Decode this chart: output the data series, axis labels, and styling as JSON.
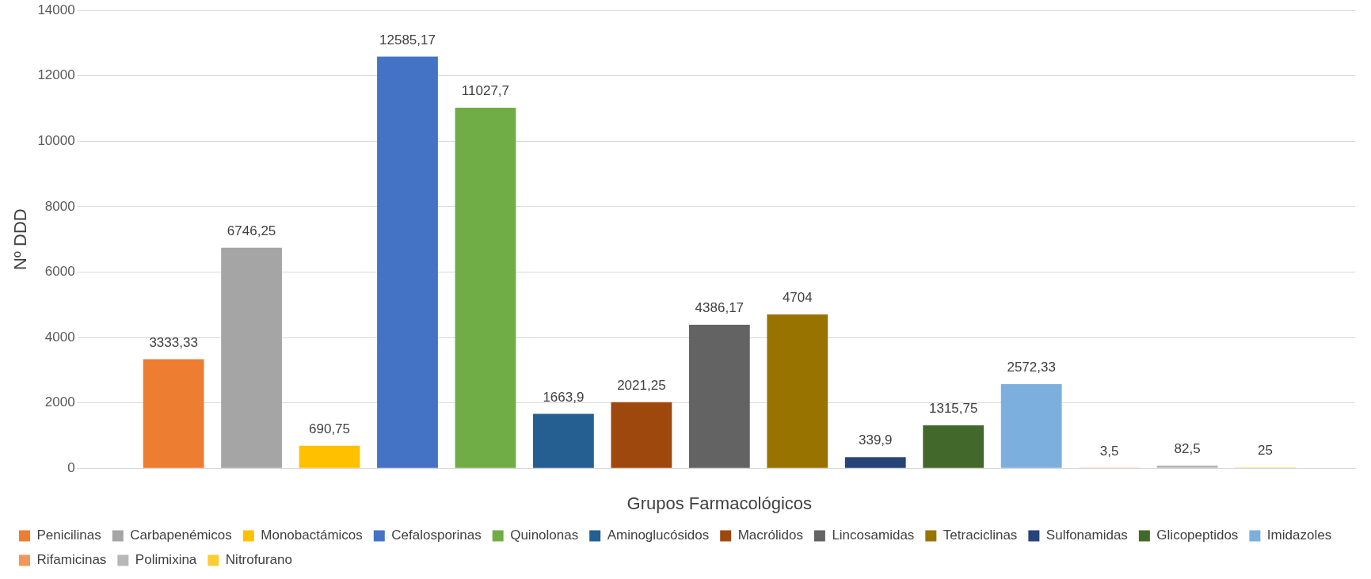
{
  "chart_data": {
    "type": "bar",
    "xlabel": "Grupos Farmacológicos",
    "ylabel": "Nº DDD",
    "categories": [
      null
    ],
    "series": [
      {
        "name": "Penicilinas",
        "color": "#ed7d31",
        "values": [
          3333.33
        ],
        "value_labels": [
          "3333,33"
        ]
      },
      {
        "name": "Carbapenémicos",
        "color": "#a5a5a5",
        "values": [
          6746.25
        ],
        "value_labels": [
          "6746,25"
        ]
      },
      {
        "name": "Monobactámicos",
        "color": "#ffc000",
        "values": [
          690.75
        ],
        "value_labels": [
          "690,75"
        ]
      },
      {
        "name": "Cefalosporinas",
        "color": "#4472c4",
        "values": [
          12585.17
        ],
        "value_labels": [
          "12585,17"
        ]
      },
      {
        "name": "Quinolonas",
        "color": "#70ad47",
        "values": [
          11027.7
        ],
        "value_labels": [
          "11027,7"
        ]
      },
      {
        "name": "Aminoglucósidos",
        "color": "#255e91",
        "values": [
          1663.9
        ],
        "value_labels": [
          "1663,9"
        ]
      },
      {
        "name": "Macrólidos",
        "color": "#9e480e",
        "values": [
          2021.25
        ],
        "value_labels": [
          "2021,25"
        ]
      },
      {
        "name": "Lincosamidas",
        "color": "#636363",
        "values": [
          4386.17
        ],
        "value_labels": [
          "4386,17"
        ]
      },
      {
        "name": "Tetraciclinas",
        "color": "#997300",
        "values": [
          4704
        ],
        "value_labels": [
          "4704"
        ]
      },
      {
        "name": "Sulfonamidas",
        "color": "#264478",
        "values": [
          339.9
        ],
        "value_labels": [
          "339,9"
        ]
      },
      {
        "name": "Glicopeptidos",
        "color": "#43682b",
        "values": [
          1315.75
        ],
        "value_labels": [
          "1315,75"
        ]
      },
      {
        "name": "Imidazoles",
        "color": "#7cafdd",
        "values": [
          2572.33
        ],
        "value_labels": [
          "2572,33"
        ]
      },
      {
        "name": "Rifamicinas",
        "color": "#f1975a",
        "values": [
          3.5
        ],
        "value_labels": [
          "3,5"
        ]
      },
      {
        "name": "Polimixina",
        "color": "#b7b7b7",
        "values": [
          82.5
        ],
        "value_labels": [
          "82,5"
        ]
      },
      {
        "name": "Nitrofurano",
        "color": "#ffcd33",
        "values": [
          25
        ],
        "value_labels": [
          "25"
        ]
      }
    ],
    "ylim": [
      0,
      14000
    ],
    "yticks": [
      0,
      2000,
      4000,
      6000,
      8000,
      10000,
      12000,
      14000
    ],
    "grid": "y",
    "legend": "bottom"
  }
}
